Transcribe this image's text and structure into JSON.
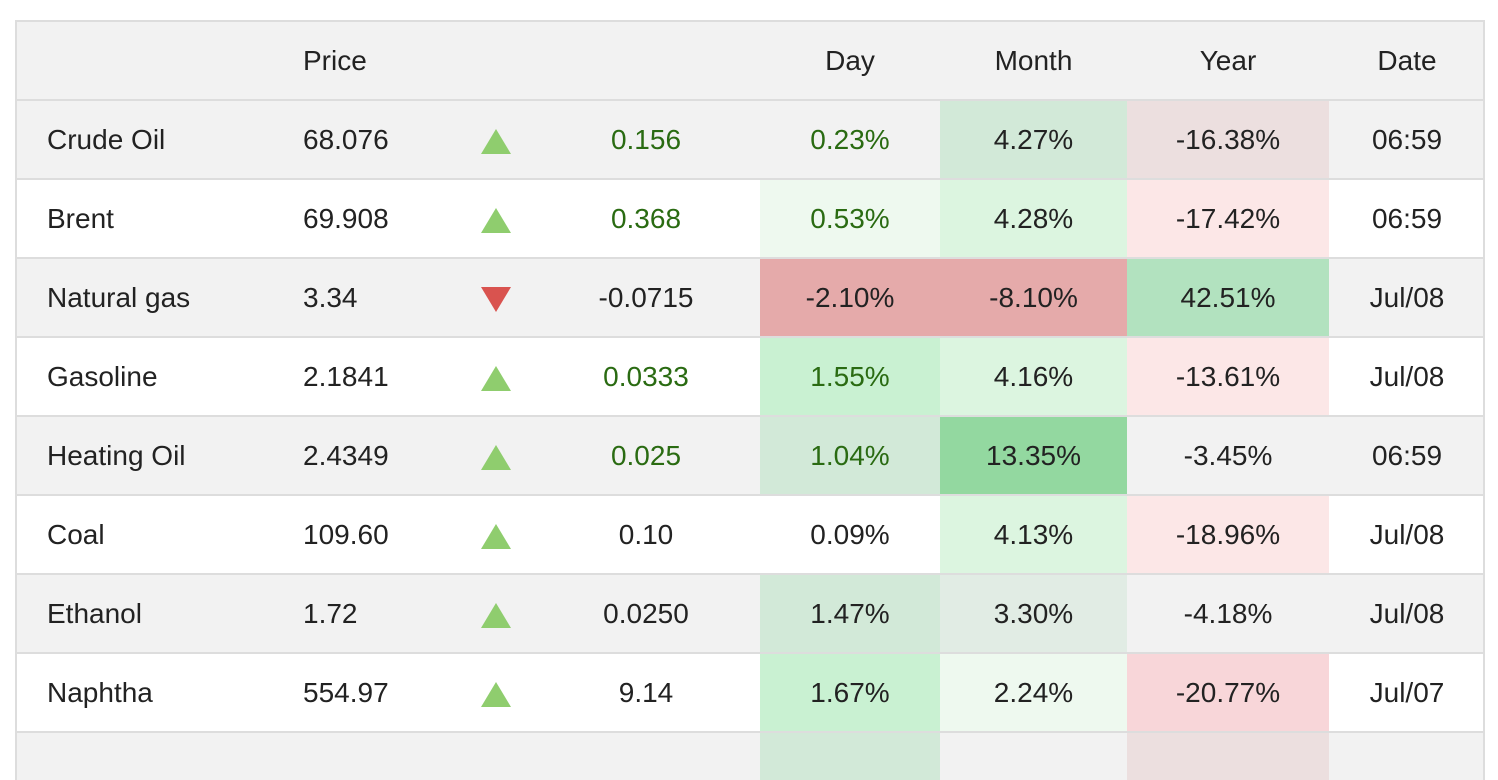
{
  "headers": [
    "",
    "Price",
    "",
    "",
    "Day",
    "Month",
    "Year",
    "Date"
  ],
  "rows": [
    {
      "name": "Crude Oil",
      "price": "68.076",
      "direction": "up",
      "change": "0.156",
      "change_tone": "pos",
      "day": "0.23%",
      "day_tone": "pos",
      "day_bg": "",
      "month": "4.27%",
      "month_bg": "#d2e9d8",
      "year": "-16.38%",
      "year_bg": "#ecdfdf",
      "date": "06:59"
    },
    {
      "name": "Brent",
      "price": "69.908",
      "direction": "up",
      "change": "0.368",
      "change_tone": "pos",
      "day": "0.53%",
      "day_tone": "pos",
      "day_bg": "#eef9ef",
      "month": "4.28%",
      "month_bg": "#dcf5e0",
      "year": "-17.42%",
      "year_bg": "#fce7e7",
      "date": "06:59"
    },
    {
      "name": "Natural gas",
      "price": "3.34",
      "direction": "down",
      "change": "-0.0715",
      "change_tone": "neutral",
      "day": "-2.10%",
      "day_tone": "neutral",
      "day_bg": "#e5aaaa",
      "month": "-8.10%",
      "month_bg": "#e5aaaa",
      "year": "42.51%",
      "year_bg": "#b2e2bf",
      "date": "Jul/08"
    },
    {
      "name": "Gasoline",
      "price": "2.1841",
      "direction": "up",
      "change": "0.0333",
      "change_tone": "pos",
      "day": "1.55%",
      "day_tone": "pos",
      "day_bg": "#c9f1d2",
      "month": "4.16%",
      "month_bg": "#dcf5e0",
      "year": "-13.61%",
      "year_bg": "#fce7e7",
      "date": "Jul/08"
    },
    {
      "name": "Heating Oil",
      "price": "2.4349",
      "direction": "up",
      "change": "0.025",
      "change_tone": "pos",
      "day": "1.04%",
      "day_tone": "pos",
      "day_bg": "#d2e9d8",
      "month": "13.35%",
      "month_bg": "#93d8a0",
      "year": "-3.45%",
      "year_bg": "",
      "date": "06:59"
    },
    {
      "name": "Coal",
      "price": "109.60",
      "direction": "up",
      "change": "0.10",
      "change_tone": "neutral",
      "day": "0.09%",
      "day_tone": "neutral",
      "day_bg": "",
      "month": "4.13%",
      "month_bg": "#dcf5e0",
      "year": "-18.96%",
      "year_bg": "#fce7e7",
      "date": "Jul/08"
    },
    {
      "name": "Ethanol",
      "price": "1.72",
      "direction": "up",
      "change": "0.0250",
      "change_tone": "neutral",
      "day": "1.47%",
      "day_tone": "neutral",
      "day_bg": "#d2e9d8",
      "month": "3.30%",
      "month_bg": "#e1ece4",
      "year": "-4.18%",
      "year_bg": "",
      "date": "Jul/08"
    },
    {
      "name": "Naphtha",
      "price": "554.97",
      "direction": "up",
      "change": "9.14",
      "change_tone": "neutral",
      "day": "1.67%",
      "day_tone": "neutral",
      "day_bg": "#c9f1d2",
      "month": "2.24%",
      "month_bg": "#eef9ef",
      "year": "-20.77%",
      "year_bg": "#f8d6d9",
      "date": "Jul/07"
    },
    {
      "name": "",
      "price": "",
      "direction": "none",
      "change": "",
      "change_tone": "neutral",
      "day": "",
      "day_tone": "neutral",
      "day_bg": "#d2e9d8",
      "month": "",
      "month_bg": "",
      "year": "",
      "year_bg": "#ecdfdf",
      "date": ""
    }
  ]
}
